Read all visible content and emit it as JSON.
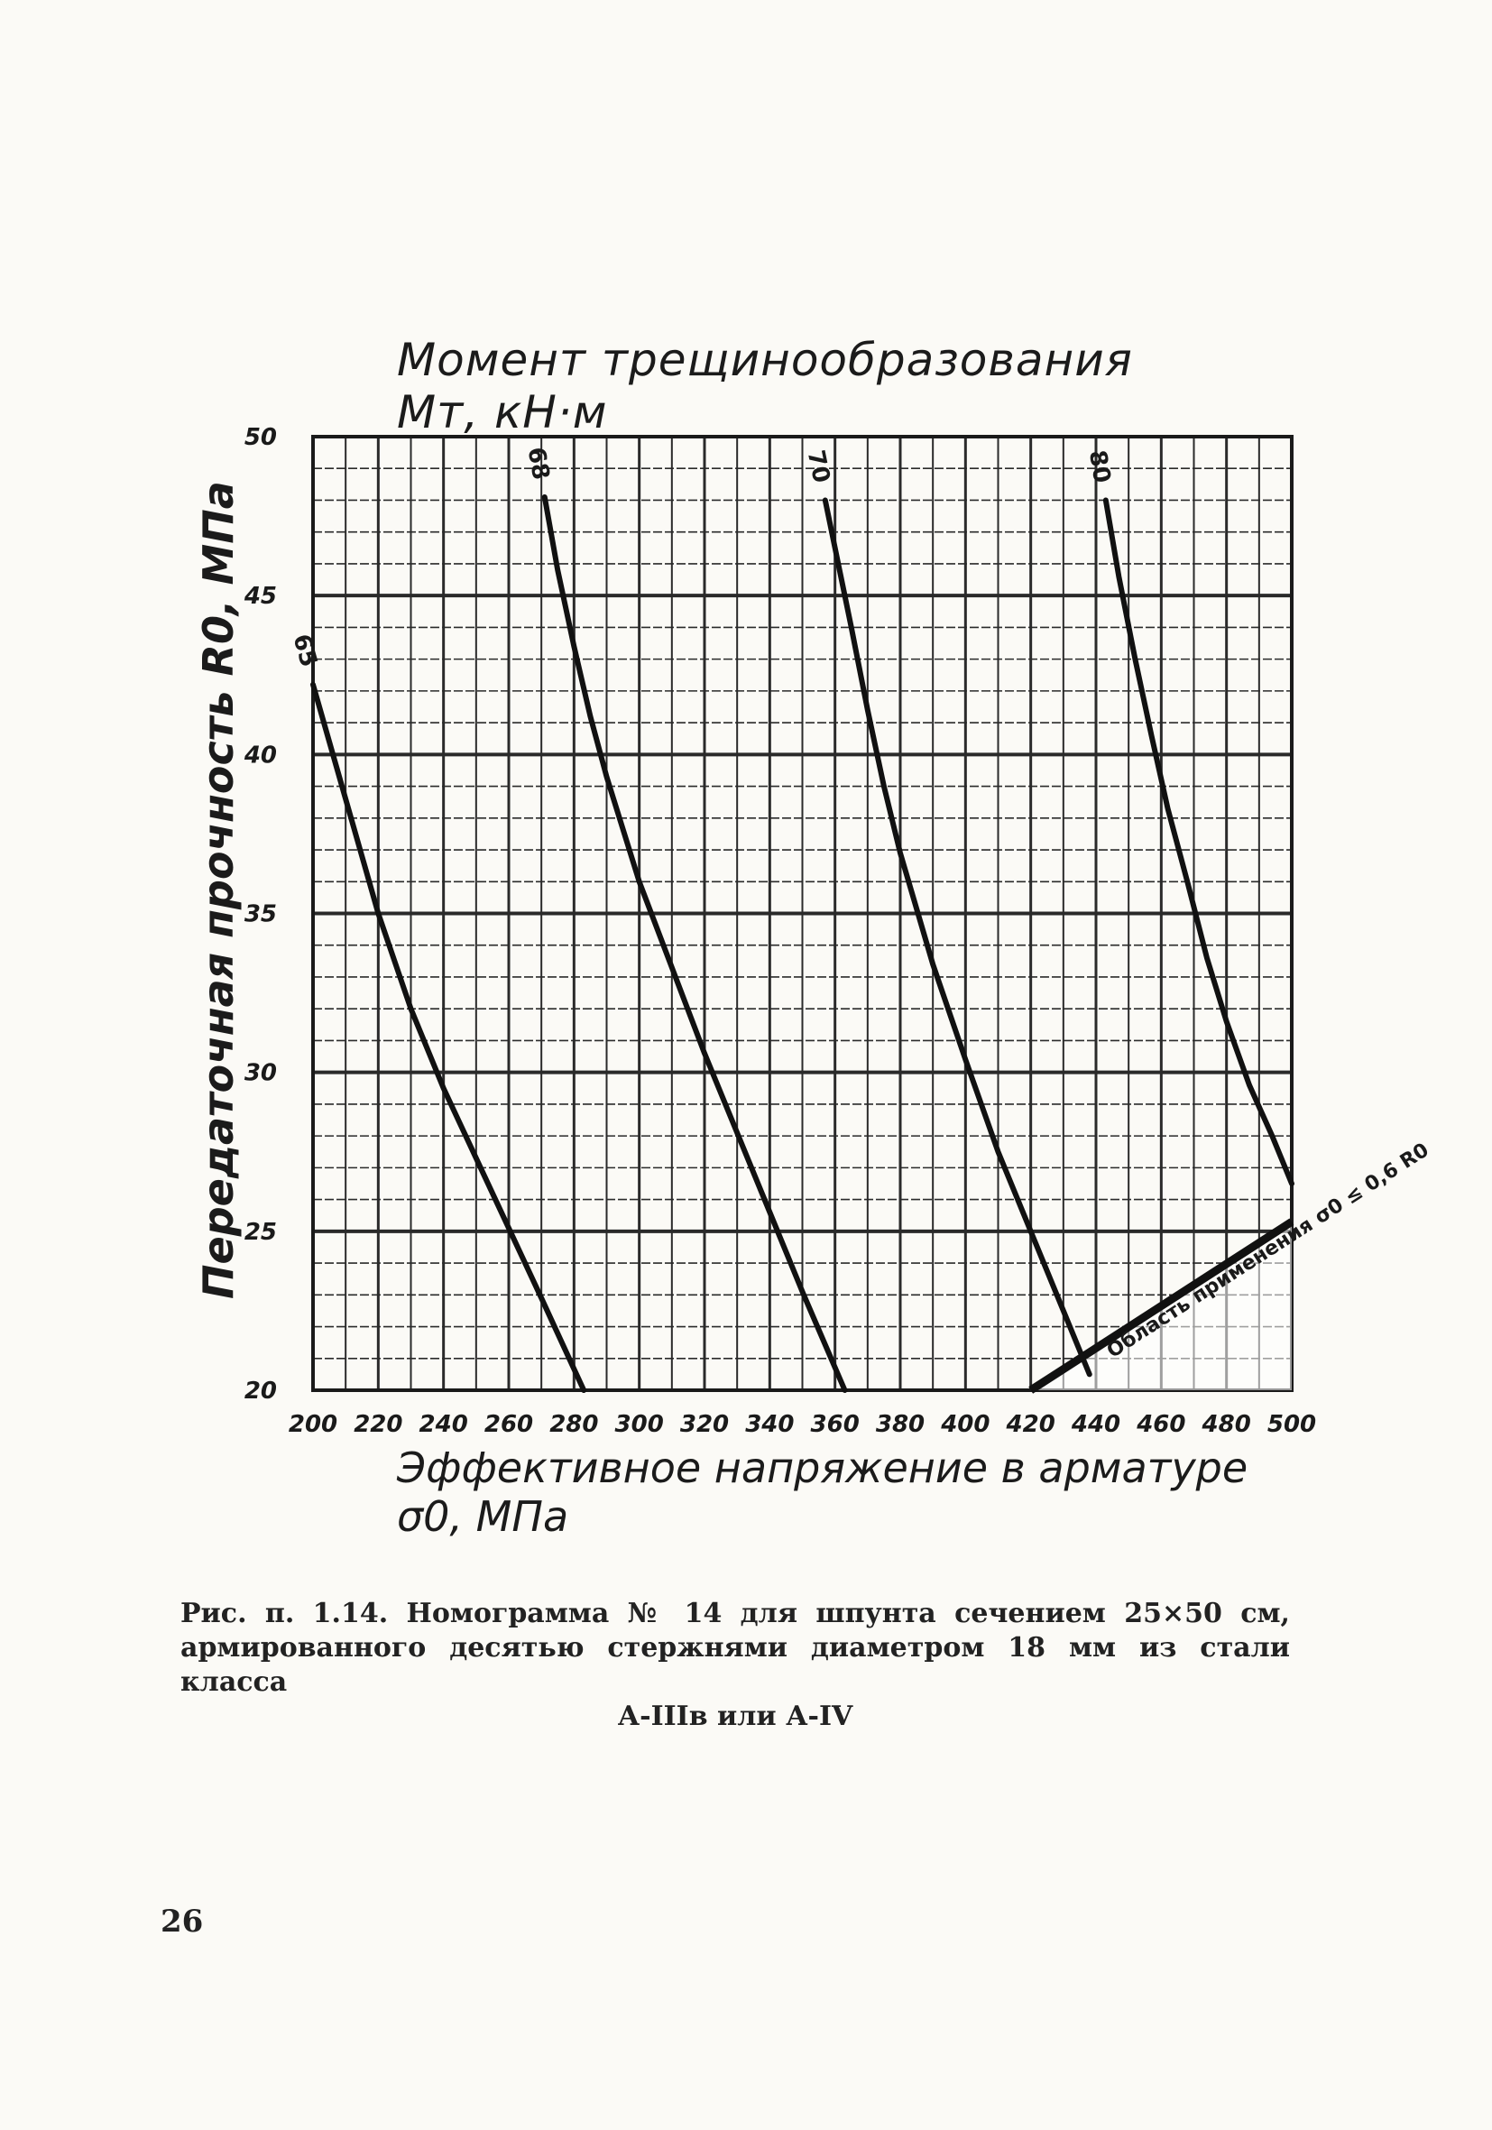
{
  "chart_data": {
    "type": "line",
    "title": "Момент трещинообразования Mт, кН·м",
    "xlabel": "Эффективное напряжение в арматуре σ0, МПа",
    "ylabel": "Передаточная прочность R0, МПа",
    "xlim": [
      200,
      500
    ],
    "ylim": [
      20,
      50
    ],
    "x_ticks": [
      200,
      220,
      240,
      260,
      280,
      300,
      320,
      340,
      360,
      380,
      400,
      420,
      440,
      460,
      480,
      500
    ],
    "x_tick_labels": [
      "200",
      "220",
      "240",
      "260",
      "280",
      "300",
      "320",
      "340",
      "360",
      "380",
      "400",
      "420",
      "440",
      "460",
      "480",
      "500"
    ],
    "y_ticks": [
      20,
      25,
      30,
      35,
      40,
      45,
      50
    ],
    "y_tick_labels": [
      "20",
      "25",
      "30",
      "35",
      "40",
      "45",
      "50"
    ],
    "grid": true,
    "series": [
      {
        "name": "65",
        "x": [
          200,
          205,
          210,
          215,
          220,
          230,
          240,
          250,
          260,
          270,
          283
        ],
        "y": [
          42.2,
          40.4,
          38.6,
          36.8,
          35.0,
          32.0,
          29.5,
          27.3,
          25.1,
          22.9,
          20.0
        ]
      },
      {
        "name": "68",
        "x": [
          271,
          275,
          280,
          285,
          290,
          300,
          310,
          320,
          330,
          340,
          350,
          363
        ],
        "y": [
          48.1,
          45.8,
          43.4,
          41.2,
          39.3,
          36.0,
          33.3,
          30.6,
          28.1,
          25.6,
          23.1,
          20.0
        ]
      },
      {
        "name": "70",
        "x": [
          357,
          360,
          365,
          370,
          375,
          380,
          390,
          400,
          410,
          420,
          430,
          438
        ],
        "y": [
          48.0,
          46.5,
          44.0,
          41.4,
          39.0,
          36.9,
          33.4,
          30.4,
          27.5,
          25.0,
          22.5,
          20.5
        ]
      },
      {
        "name": "80",
        "x": [
          443,
          447,
          452,
          457,
          462,
          468,
          474,
          480,
          487,
          494,
          500
        ],
        "y": [
          48.0,
          45.6,
          43.0,
          40.6,
          38.3,
          36.0,
          33.6,
          31.6,
          29.6,
          28.0,
          26.5
        ]
      }
    ],
    "boundary": {
      "label": "Область применения σ0 ≤ 0,6 R0",
      "x": [
        420,
        500
      ],
      "y": [
        20.0,
        25.3
      ]
    }
  },
  "caption": {
    "text": "Рис. п. 1.14. Номограмма № 14 для шпунта сечением 25×50 см, армированного десятью стержнями диаметром 18 мм из стали класса",
    "last_line": "А-IIIв или А-IV"
  },
  "page_number": "26"
}
